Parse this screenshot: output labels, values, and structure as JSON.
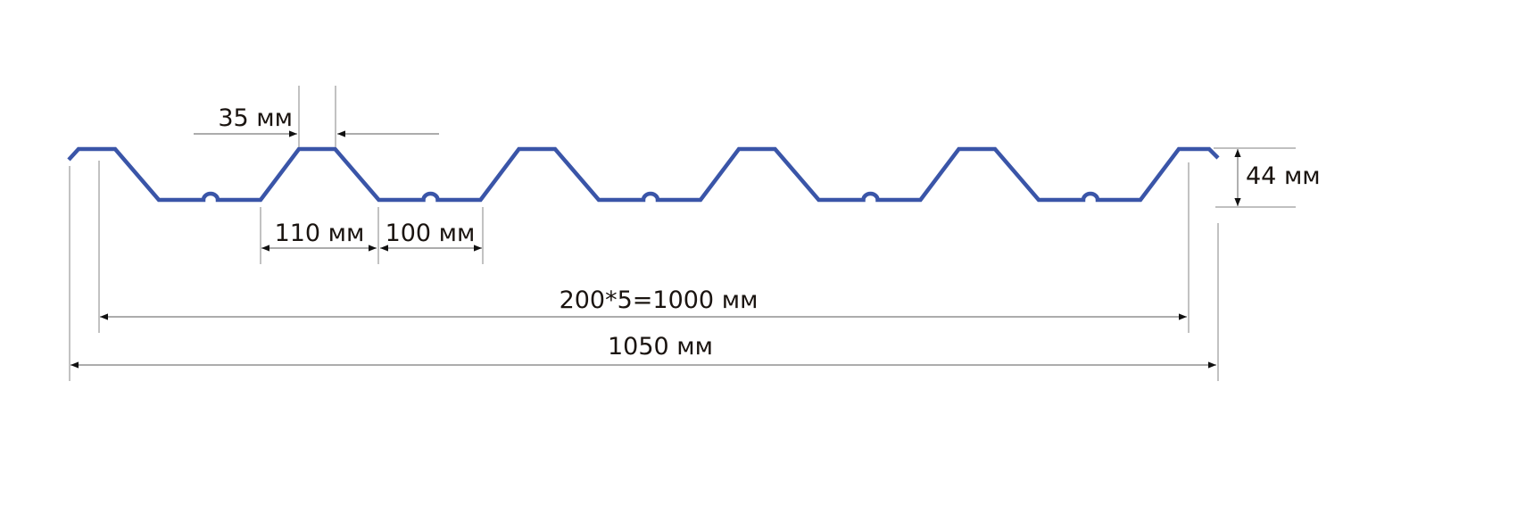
{
  "diagram": {
    "profile_color": "#3a55a8",
    "labels": {
      "rib_top_width": "35 мм",
      "rib_bottom_width": "110 мм",
      "valley_width": "100 мм",
      "useful_width": "200*5=1000 мм",
      "total_width": "1050 мм",
      "height": "44 мм"
    }
  }
}
